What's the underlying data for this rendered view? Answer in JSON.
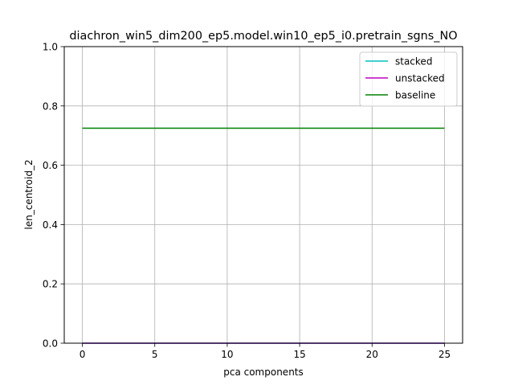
{
  "chart_data": {
    "type": "line",
    "title": "diachron_win5_dim200_ep5.model.win10_ep5_i0.pretrain_sgns_NO",
    "xlabel": "pca components",
    "ylabel": "len_centroid_2",
    "xlim": [
      -1.25,
      26.25
    ],
    "ylim": [
      0,
      1.0
    ],
    "x_ticks": [
      0,
      5,
      10,
      15,
      20,
      25
    ],
    "y_ticks": [
      0.0,
      0.2,
      0.4,
      0.6,
      0.8,
      1.0
    ],
    "x_tick_labels": [
      "0",
      "5",
      "10",
      "15",
      "20",
      "25"
    ],
    "y_tick_labels": [
      "0.0",
      "0.2",
      "0.4",
      "0.6",
      "0.8",
      "1.0"
    ],
    "grid": true,
    "legend_position": "top-right",
    "series": [
      {
        "name": "stacked",
        "color": "#00bfbf",
        "x": [
          0,
          25
        ],
        "y": [
          0,
          0
        ]
      },
      {
        "name": "unstacked",
        "color": "#bf00bf",
        "x": [
          0,
          25
        ],
        "y": [
          0,
          0
        ]
      },
      {
        "name": "baseline",
        "color": "#008000",
        "x": [
          0,
          25
        ],
        "y": [
          0.725,
          0.725
        ]
      }
    ]
  }
}
